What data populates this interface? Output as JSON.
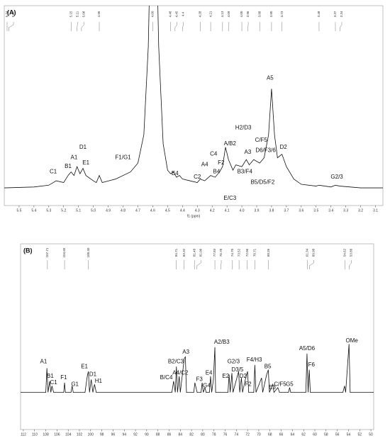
{
  "chart_data": [
    {
      "type": "line",
      "title": "(A)",
      "xlabel": "f1 (ppm)",
      "color": "#111111",
      "xlim": [
        5.6,
        3.05
      ],
      "ylim": [
        -10,
        103
      ],
      "xticks": [
        5.5,
        5.4,
        5.3,
        5.2,
        5.1,
        {
          "value": 5,
          "label": "5.0"
        },
        4.9,
        4.8,
        4.7,
        4.6,
        4.5,
        4.4,
        4.3,
        4.2,
        4.1,
        {
          "value": 4,
          "label": "4.0"
        },
        3.9,
        3.8,
        3.7,
        3.6,
        3.5,
        3.4,
        3.3,
        3.2,
        3.1
      ],
      "x": [
        5.6,
        5.4,
        5.3,
        5.25,
        5.2,
        5.17,
        5.15,
        5.13,
        5.11,
        5.09,
        5.07,
        5.05,
        5.0,
        4.98,
        4.96,
        4.94,
        4.85,
        4.75,
        4.7,
        4.66,
        4.63,
        4.61,
        4.58,
        4.56,
        4.53,
        4.5,
        4.48,
        4.46,
        4.44,
        4.42,
        4.4,
        4.35,
        4.3,
        4.28,
        4.25,
        4.21,
        4.18,
        4.15,
        4.13,
        4.11,
        4.09,
        4.06,
        4.04,
        4.0,
        3.97,
        3.95,
        3.92,
        3.88,
        3.85,
        3.82,
        3.8,
        3.78,
        3.76,
        3.73,
        3.7,
        3.65,
        3.6,
        3.5,
        3.48,
        3.4,
        3.37,
        3.34,
        3.2,
        3.05
      ],
      "values": [
        0,
        0.5,
        1.5,
        4,
        3,
        7,
        9,
        7,
        12,
        8,
        11,
        7,
        4,
        3,
        7,
        3,
        5,
        9,
        14,
        30,
        80,
        160,
        160,
        80,
        25,
        10,
        8,
        9,
        6,
        7,
        5,
        4,
        3,
        5,
        4,
        7,
        6,
        9,
        12,
        23,
        16,
        10,
        13,
        12,
        16,
        13,
        16,
        14,
        17,
        30,
        56,
        30,
        17,
        19,
        12,
        5,
        2,
        1,
        1.5,
        0.5,
        1.5,
        1,
        0,
        0
      ],
      "peak_labels": [
        5.74,
        5.57,
        5.15,
        5.11,
        5.08,
        4.96,
        {
          "value": 4.6,
          "label": "4.60"
        },
        4.48,
        4.45,
        4.4,
        4.28,
        4.21,
        4.13,
        4.09,
        {
          "value": 4,
          "label": "4.00"
        },
        3.96,
        3.88,
        {
          "value": 3.8,
          "label": "3.80"
        },
        3.73,
        3.48,
        3.37,
        3.34
      ],
      "annotations": [
        {
          "text": "C1",
          "x": 5.27,
          "y": 9
        },
        {
          "text": "B1",
          "x": 5.17,
          "y": 12
        },
        {
          "text": "A1",
          "x": 5.13,
          "y": 17
        },
        {
          "text": "D1",
          "x": 5.07,
          "y": 23
        },
        {
          "text": "E1",
          "x": 5.05,
          "y": 14
        },
        {
          "text": "F1/G1",
          "x": 4.8,
          "y": 17
        },
        {
          "text": "E4",
          "x": 4.45,
          "y": 8
        },
        {
          "text": "C2",
          "x": 4.3,
          "y": 6
        },
        {
          "text": "A4",
          "x": 4.25,
          "y": 13
        },
        {
          "text": "C4",
          "x": 4.19,
          "y": 19
        },
        {
          "text": "F2",
          "x": 4.14,
          "y": 14
        },
        {
          "text": "B4",
          "x": 4.17,
          "y": 9
        },
        {
          "text": "A/B2",
          "x": 4.08,
          "y": 25
        },
        {
          "text": "E/C3",
          "x": 4.08,
          "y": -6
        },
        {
          "text": "H2/D3",
          "x": 3.99,
          "y": 34
        },
        {
          "text": "A3",
          "x": 3.96,
          "y": 20
        },
        {
          "text": "B3/F4",
          "x": 3.98,
          "y": 9
        },
        {
          "text": "C/F5",
          "x": 3.87,
          "y": 27
        },
        {
          "text": "D6/F3/6",
          "x": 3.84,
          "y": 21
        },
        {
          "text": "B5/D5/F2",
          "x": 3.86,
          "y": 3
        },
        {
          "text": "A5",
          "x": 3.81,
          "y": 62
        },
        {
          "text": "D2",
          "x": 3.72,
          "y": 23
        },
        {
          "text": "G2/3",
          "x": 3.36,
          "y": 6
        }
      ]
    },
    {
      "type": "line",
      "title": "(B)",
      "color": "#111111",
      "xlim": [
        112.5,
        49.5
      ],
      "ylim": [
        -23,
        92
      ],
      "xticks": [
        112,
        110,
        108,
        106,
        104,
        102,
        100,
        98,
        96,
        94,
        92,
        90,
        88,
        86,
        84,
        82,
        80,
        78,
        76,
        74,
        72,
        70,
        68,
        66,
        64,
        62,
        60,
        58,
        56,
        54,
        52,
        50
      ],
      "x": [
        112.5,
        108.0,
        107.8,
        107.6,
        107.3,
        107.1,
        106.9,
        106.6,
        104.8,
        104.65,
        104.5,
        103.5,
        103.3,
        103.1,
        101.0,
        100.6,
        100.4,
        100.2,
        99.9,
        99.6,
        99.3,
        99.0,
        85.5,
        85.2,
        84.9,
        84.7,
        84.5,
        84.2,
        84.0,
        83.3,
        83.1,
        82.9,
        81.6,
        81.4,
        81.0,
        80.3,
        80.1,
        79.9,
        79.6,
        79.4,
        78.8,
        78.6,
        78.4,
        78.1,
        77.83,
        77.7,
        75.5,
        75.3,
        75.1,
        74.8,
        74.6,
        73.6,
        73.4,
        73.1,
        72.9,
        72.4,
        72.0,
        71.8,
        70.9,
        70.7,
        70.5,
        69.5,
        69.3,
        68.6,
        68.3,
        68.1,
        67.5,
        67.3,
        66.6,
        66.3,
        64.7,
        64.5,
        64.3,
        61.6,
        61.4,
        61.2,
        61.0,
        60.8,
        55.0,
        54.7,
        54.5,
        53.9,
        53.7,
        49.5
      ],
      "values": [
        0,
        0,
        15,
        0,
        7,
        0,
        4,
        0,
        0,
        6,
        0,
        0,
        4,
        0,
        0,
        10,
        13,
        0,
        8,
        0,
        5,
        0,
        0,
        7,
        0,
        16,
        0,
        10,
        0,
        21,
        22,
        0,
        0,
        6,
        0,
        0,
        6,
        0,
        3,
        0,
        0,
        10,
        0,
        8,
        28,
        0,
        0,
        11,
        0,
        12,
        0,
        13,
        0,
        9,
        0,
        8,
        13,
        0,
        0,
        17,
        0,
        9,
        0,
        11,
        14,
        0,
        5,
        0,
        3,
        0,
        0,
        3,
        0,
        0,
        24,
        0,
        14,
        0,
        0,
        4,
        0,
        30,
        0,
        0
      ],
      "peak_labels": [
        107.71,
        104.65,
        {
          "value": 100.4,
          "label": "100.40"
        },
        84.71,
        83.32,
        81.48,
        81.08,
        77.83,
        76.78,
        {
          "value": 74.7,
          "label": "74.70"
        },
        73.52,
        72.06,
        70.71,
        68.26,
        61.34,
        60.98,
        54.62,
        53.88
      ],
      "annotations": [
        {
          "text": "A1",
          "x": 108.4,
          "y": 19
        },
        {
          "text": "B1",
          "x": 107.2,
          "y": 10
        },
        {
          "text": "C1",
          "x": 106.6,
          "y": 6
        },
        {
          "text": "F1",
          "x": 104.8,
          "y": 9
        },
        {
          "text": "G1",
          "x": 102.8,
          "y": 5
        },
        {
          "text": "E1",
          "x": 101.1,
          "y": 16
        },
        {
          "text": "D1",
          "x": 99.6,
          "y": 11
        },
        {
          "text": "H1",
          "x": 98.6,
          "y": 7
        },
        {
          "text": "B/C4",
          "x": 86.5,
          "y": 9
        },
        {
          "text": "B2/C3",
          "x": 84.8,
          "y": 19
        },
        {
          "text": "A4/C2",
          "x": 84.0,
          "y": 12
        },
        {
          "text": "A3",
          "x": 83.0,
          "y": 25
        },
        {
          "text": "F3",
          "x": 80.6,
          "y": 8
        },
        {
          "text": "G4",
          "x": 79.3,
          "y": 4
        },
        {
          "text": "E4",
          "x": 78.9,
          "y": 12
        },
        {
          "text": "A2/B3",
          "x": 76.6,
          "y": 31
        },
        {
          "text": "E2",
          "x": 75.9,
          "y": 10
        },
        {
          "text": "G2/3",
          "x": 74.5,
          "y": 19
        },
        {
          "text": "D3/5",
          "x": 73.8,
          "y": 14
        },
        {
          "text": "D2",
          "x": 72.8,
          "y": 10
        },
        {
          "text": "F4/H3",
          "x": 70.8,
          "y": 20
        },
        {
          "text": "F2",
          "x": 71.9,
          "y": 5
        },
        {
          "text": "B5",
          "x": 68.4,
          "y": 16
        },
        {
          "text": "E3",
          "x": 67.6,
          "y": 3
        },
        {
          "text": "C/F5",
          "x": 66.2,
          "y": 5
        },
        {
          "text": "G5",
          "x": 64.5,
          "y": 5
        },
        {
          "text": "A5/D6",
          "x": 61.4,
          "y": 27
        },
        {
          "text": "F6",
          "x": 60.6,
          "y": 17
        },
        {
          "text": "OMe",
          "x": 53.4,
          "y": 32
        }
      ]
    }
  ]
}
